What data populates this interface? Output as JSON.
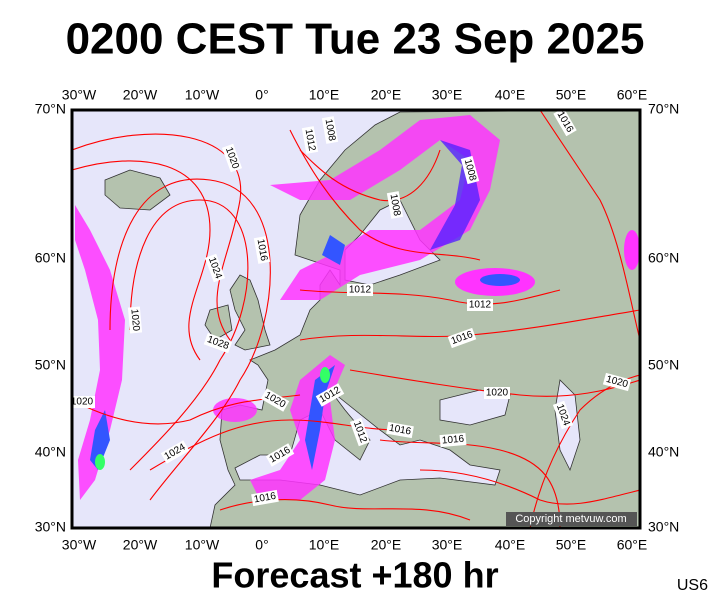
{
  "header": {
    "title": "0200 CEST Tue 23 Sep 2025"
  },
  "map": {
    "longitude_labels": [
      "30°W",
      "20°W",
      "10°W",
      "0°",
      "10°E",
      "20°E",
      "30°E",
      "40°E",
      "50°E",
      "60°E"
    ],
    "latitude_labels": [
      "70°N",
      "60°N",
      "50°N",
      "40°N",
      "30°N"
    ],
    "isobar_labels": [
      "1020",
      "1012",
      "1008",
      "1016",
      "1008",
      "1008",
      "1016",
      "1024",
      "1012",
      "1012",
      "1020",
      "1028",
      "1016",
      "1020",
      "1020",
      "1012",
      "1012",
      "1016",
      "1020",
      "1020",
      "1024",
      "1016",
      "1024",
      "1016",
      "1016"
    ],
    "copyright": "Copyright metvuw.com"
  },
  "footer": {
    "forecast": "Forecast +180 hr",
    "code": "US6"
  }
}
